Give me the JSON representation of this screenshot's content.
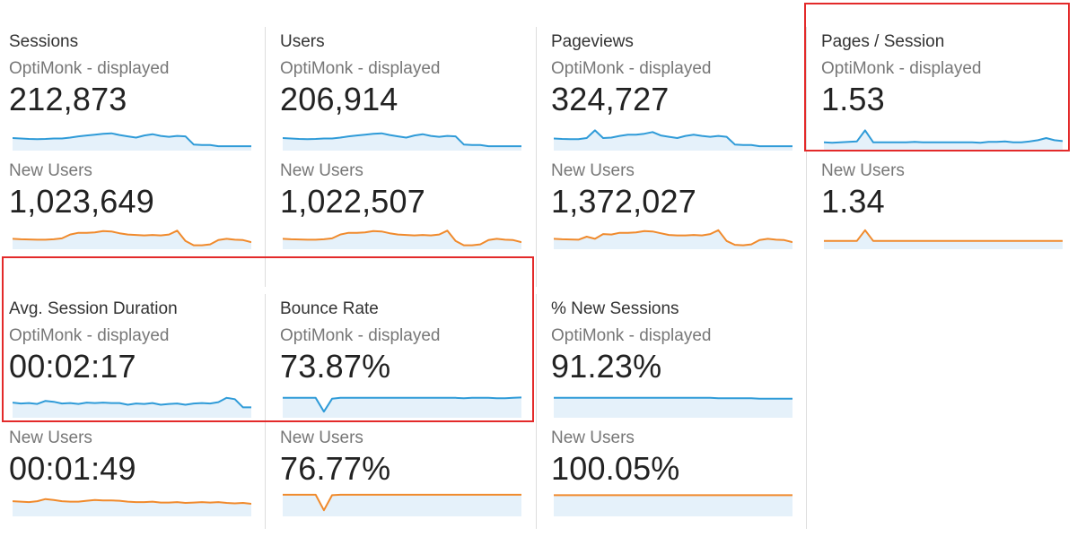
{
  "segments": {
    "primary": "OptiMonk - displayed",
    "secondary": "New Users"
  },
  "colors": {
    "primary_line": "#2f9bd8",
    "primary_fill": "#e5f1fa",
    "secondary_line": "#f08a2c",
    "secondary_fill": "#e5f1fa",
    "highlight": "#e32a2a"
  },
  "tiles": [
    {
      "metric": "Sessions",
      "primary_value": "212,873",
      "secondary_value": "1,023,649"
    },
    {
      "metric": "Users",
      "primary_value": "206,914",
      "secondary_value": "1,022,507"
    },
    {
      "metric": "Pageviews",
      "primary_value": "324,727",
      "secondary_value": "1,372,027"
    },
    {
      "metric": "Pages / Session",
      "primary_value": "1.53",
      "secondary_value": "1.34"
    },
    {
      "metric": "Avg. Session Duration",
      "primary_value": "00:02:17",
      "secondary_value": "00:01:49"
    },
    {
      "metric": "Bounce Rate",
      "primary_value": "73.87%",
      "secondary_value": "76.77%"
    },
    {
      "metric": "% New Sessions",
      "primary_value": "91.23%",
      "secondary_value": "100.05%"
    }
  ],
  "sparklines": {
    "sessions": [
      0.5,
      0.48,
      0.46,
      0.45,
      0.46,
      0.48,
      0.48,
      0.52,
      0.58,
      0.62,
      0.66,
      0.7,
      0.72,
      0.64,
      0.58,
      0.52,
      0.62,
      0.68,
      0.6,
      0.56,
      0.6,
      0.58,
      0.2,
      0.18,
      0.18,
      0.12,
      0.12,
      0.12,
      0.12,
      0.12
    ],
    "sessions_new": [
      0.4,
      0.38,
      0.37,
      0.36,
      0.36,
      0.38,
      0.42,
      0.6,
      0.68,
      0.68,
      0.7,
      0.76,
      0.74,
      0.66,
      0.6,
      0.58,
      0.56,
      0.58,
      0.56,
      0.6,
      0.78,
      0.3,
      0.1,
      0.1,
      0.14,
      0.34,
      0.4,
      0.36,
      0.34,
      0.24
    ],
    "users": [
      0.5,
      0.48,
      0.46,
      0.45,
      0.46,
      0.48,
      0.48,
      0.52,
      0.58,
      0.62,
      0.66,
      0.7,
      0.72,
      0.64,
      0.58,
      0.52,
      0.62,
      0.68,
      0.6,
      0.56,
      0.6,
      0.58,
      0.2,
      0.18,
      0.18,
      0.12,
      0.12,
      0.12,
      0.12,
      0.12
    ],
    "users_new": [
      0.4,
      0.38,
      0.37,
      0.36,
      0.36,
      0.38,
      0.42,
      0.6,
      0.68,
      0.68,
      0.7,
      0.76,
      0.74,
      0.66,
      0.6,
      0.58,
      0.56,
      0.58,
      0.56,
      0.6,
      0.78,
      0.3,
      0.1,
      0.1,
      0.14,
      0.34,
      0.4,
      0.36,
      0.34,
      0.24
    ],
    "pageviews": [
      0.48,
      0.46,
      0.45,
      0.45,
      0.5,
      0.86,
      0.5,
      0.52,
      0.6,
      0.66,
      0.66,
      0.7,
      0.78,
      0.62,
      0.56,
      0.5,
      0.6,
      0.66,
      0.6,
      0.56,
      0.6,
      0.56,
      0.2,
      0.18,
      0.18,
      0.12,
      0.12,
      0.12,
      0.12,
      0.12
    ],
    "pageviews_new": [
      0.4,
      0.38,
      0.37,
      0.36,
      0.5,
      0.4,
      0.62,
      0.6,
      0.68,
      0.68,
      0.7,
      0.76,
      0.74,
      0.66,
      0.58,
      0.56,
      0.56,
      0.58,
      0.56,
      0.62,
      0.8,
      0.3,
      0.12,
      0.1,
      0.14,
      0.34,
      0.4,
      0.36,
      0.34,
      0.24
    ],
    "pages_per_session": [
      0.3,
      0.28,
      0.3,
      0.32,
      0.34,
      0.86,
      0.3,
      0.3,
      0.3,
      0.3,
      0.3,
      0.32,
      0.3,
      0.3,
      0.3,
      0.3,
      0.3,
      0.3,
      0.3,
      0.28,
      0.32,
      0.32,
      0.34,
      0.3,
      0.3,
      0.34,
      0.4,
      0.5,
      0.4,
      0.36
    ],
    "pages_per_session_new": [
      0.3,
      0.3,
      0.3,
      0.3,
      0.3,
      0.8,
      0.3,
      0.3,
      0.3,
      0.3,
      0.3,
      0.3,
      0.3,
      0.3,
      0.3,
      0.3,
      0.3,
      0.3,
      0.3,
      0.3,
      0.3,
      0.3,
      0.3,
      0.3,
      0.3,
      0.3,
      0.3,
      0.3,
      0.3,
      0.3
    ],
    "avg_session_duration": [
      0.62,
      0.58,
      0.6,
      0.56,
      0.7,
      0.66,
      0.58,
      0.6,
      0.56,
      0.62,
      0.6,
      0.62,
      0.6,
      0.6,
      0.52,
      0.58,
      0.56,
      0.6,
      0.52,
      0.56,
      0.58,
      0.52,
      0.58,
      0.6,
      0.58,
      0.64,
      0.84,
      0.78,
      0.4,
      0.4
    ],
    "avg_session_duration_new": [
      0.62,
      0.6,
      0.58,
      0.62,
      0.72,
      0.68,
      0.62,
      0.6,
      0.6,
      0.64,
      0.68,
      0.66,
      0.66,
      0.64,
      0.6,
      0.58,
      0.58,
      0.6,
      0.56,
      0.56,
      0.58,
      0.54,
      0.56,
      0.58,
      0.56,
      0.58,
      0.54,
      0.52,
      0.54,
      0.5
    ],
    "bounce_rate": [
      0.84,
      0.84,
      0.84,
      0.84,
      0.84,
      0.2,
      0.8,
      0.84,
      0.84,
      0.84,
      0.84,
      0.84,
      0.84,
      0.84,
      0.84,
      0.84,
      0.84,
      0.84,
      0.84,
      0.84,
      0.84,
      0.84,
      0.82,
      0.84,
      0.84,
      0.84,
      0.82,
      0.82,
      0.84,
      0.86
    ],
    "bounce_rate_new": [
      0.92,
      0.92,
      0.92,
      0.92,
      0.92,
      0.2,
      0.9,
      0.92,
      0.92,
      0.92,
      0.92,
      0.92,
      0.92,
      0.92,
      0.92,
      0.92,
      0.92,
      0.92,
      0.92,
      0.92,
      0.92,
      0.92,
      0.92,
      0.92,
      0.92,
      0.92,
      0.92,
      0.92,
      0.92,
      0.92
    ],
    "new_sessions": [
      0.84,
      0.84,
      0.84,
      0.84,
      0.84,
      0.84,
      0.84,
      0.84,
      0.84,
      0.84,
      0.84,
      0.84,
      0.84,
      0.84,
      0.84,
      0.84,
      0.84,
      0.84,
      0.84,
      0.84,
      0.82,
      0.82,
      0.82,
      0.82,
      0.82,
      0.8,
      0.8,
      0.8,
      0.8,
      0.8
    ],
    "new_sessions_new": [
      0.9,
      0.9,
      0.9,
      0.9,
      0.9,
      0.9,
      0.9,
      0.9,
      0.9,
      0.9,
      0.9,
      0.9,
      0.9,
      0.9,
      0.9,
      0.9,
      0.9,
      0.9,
      0.9,
      0.9,
      0.9,
      0.9,
      0.9,
      0.9,
      0.9,
      0.9,
      0.9,
      0.9,
      0.9,
      0.9
    ]
  }
}
